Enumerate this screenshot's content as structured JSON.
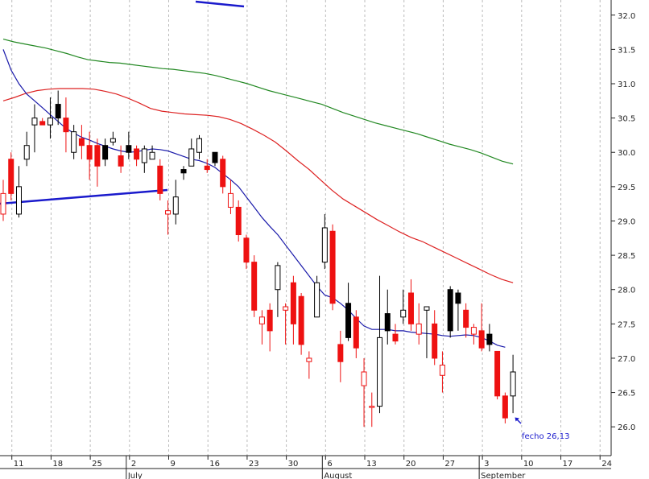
{
  "chart_data": {
    "type": "candlestick",
    "ylim": [
      25.58,
      32.22
    ],
    "y_ticks": [
      "26.0",
      "26.5",
      "27.0",
      "27.5",
      "28.0",
      "28.5",
      "29.0",
      "29.5",
      "30.0",
      "30.5",
      "31.0",
      "31.5",
      "32.0"
    ],
    "x_ticks": [
      "11",
      "18",
      "25",
      "2",
      "9",
      "16",
      "23",
      "30",
      "6",
      "13",
      "20",
      "27",
      "3",
      "10",
      "17",
      "24"
    ],
    "month_labels": [
      "July",
      "August",
      "September"
    ],
    "annotation": "fecho 26,13",
    "colors": {
      "up_candle": "#ffffff",
      "down_candle": "#ee1111",
      "neutral_candle": "#000000",
      "ma_short": "#1a1aaa",
      "ma_mid": "#dd2222",
      "ma_long": "#228822",
      "trendline": "#1a1acc",
      "annotation": "#1a1acc"
    },
    "candles": [
      {
        "o": 29.1,
        "h": 29.6,
        "l": 29.0,
        "c": 29.4,
        "color": "red_outline"
      },
      {
        "o": 29.9,
        "h": 30.0,
        "l": 29.3,
        "c": 29.4,
        "color": "red"
      },
      {
        "o": 29.1,
        "h": 29.8,
        "l": 29.05,
        "c": 29.5,
        "color": "up"
      },
      {
        "o": 29.9,
        "h": 30.3,
        "l": 29.8,
        "c": 30.1,
        "color": "up"
      },
      {
        "o": 30.4,
        "h": 30.7,
        "l": 30.0,
        "c": 30.5,
        "color": "up"
      },
      {
        "o": 30.45,
        "h": 30.5,
        "l": 30.4,
        "c": 30.4,
        "color": "red"
      },
      {
        "o": 30.4,
        "h": 30.8,
        "l": 30.2,
        "c": 30.5,
        "color": "up"
      },
      {
        "o": 30.5,
        "h": 30.9,
        "l": 30.4,
        "c": 30.7,
        "color": "black"
      },
      {
        "o": 30.5,
        "h": 30.8,
        "l": 30.0,
        "c": 30.3,
        "color": "red"
      },
      {
        "o": 30.0,
        "h": 30.4,
        "l": 29.9,
        "c": 30.3,
        "color": "up"
      },
      {
        "o": 30.2,
        "h": 30.4,
        "l": 29.9,
        "c": 30.1,
        "color": "red"
      },
      {
        "o": 30.1,
        "h": 30.3,
        "l": 29.6,
        "c": 29.9,
        "color": "red"
      },
      {
        "o": 30.1,
        "h": 30.2,
        "l": 29.5,
        "c": 29.8,
        "color": "red"
      },
      {
        "o": 29.9,
        "h": 30.2,
        "l": 29.8,
        "c": 30.1,
        "color": "black"
      },
      {
        "o": 30.15,
        "h": 30.3,
        "l": 30.1,
        "c": 30.2,
        "color": "up"
      },
      {
        "o": 29.95,
        "h": 30.1,
        "l": 29.7,
        "c": 29.8,
        "color": "red"
      },
      {
        "o": 30.1,
        "h": 30.3,
        "l": 29.9,
        "c": 30.0,
        "color": "black"
      },
      {
        "o": 30.05,
        "h": 30.1,
        "l": 29.8,
        "c": 29.9,
        "color": "red"
      },
      {
        "o": 29.85,
        "h": 30.1,
        "l": 29.7,
        "c": 30.05,
        "color": "up"
      },
      {
        "o": 30.0,
        "h": 30.1,
        "l": 29.9,
        "c": 29.9,
        "color": "up"
      },
      {
        "o": 29.8,
        "h": 29.9,
        "l": 29.3,
        "c": 29.4,
        "color": "red"
      },
      {
        "o": 29.1,
        "h": 29.3,
        "l": 28.8,
        "c": 29.15,
        "color": "red_outline"
      },
      {
        "o": 29.1,
        "h": 29.6,
        "l": 28.95,
        "c": 29.35,
        "color": "up"
      },
      {
        "o": 29.7,
        "h": 29.8,
        "l": 29.6,
        "c": 29.75,
        "color": "black"
      },
      {
        "o": 29.8,
        "h": 30.2,
        "l": 29.8,
        "c": 30.05,
        "color": "up"
      },
      {
        "o": 30.0,
        "h": 30.25,
        "l": 29.9,
        "c": 30.2,
        "color": "up"
      },
      {
        "o": 29.8,
        "h": 29.9,
        "l": 29.7,
        "c": 29.75,
        "color": "red"
      },
      {
        "o": 29.85,
        "h": 30.0,
        "l": 29.8,
        "c": 30.0,
        "color": "black"
      },
      {
        "o": 29.9,
        "h": 29.95,
        "l": 29.4,
        "c": 29.5,
        "color": "red"
      },
      {
        "o": 29.4,
        "h": 29.6,
        "l": 29.1,
        "c": 29.2,
        "color": "red_outline"
      },
      {
        "o": 29.2,
        "h": 29.3,
        "l": 28.7,
        "c": 28.8,
        "color": "red"
      },
      {
        "o": 28.75,
        "h": 28.8,
        "l": 28.3,
        "c": 28.4,
        "color": "red"
      },
      {
        "o": 28.4,
        "h": 28.5,
        "l": 27.6,
        "c": 27.7,
        "color": "red"
      },
      {
        "o": 27.6,
        "h": 27.7,
        "l": 27.2,
        "c": 27.5,
        "color": "red_outline"
      },
      {
        "o": 27.4,
        "h": 27.8,
        "l": 27.1,
        "c": 27.7,
        "color": "red"
      },
      {
        "o": 28.0,
        "h": 28.4,
        "l": 27.6,
        "c": 28.35,
        "color": "up"
      },
      {
        "o": 27.7,
        "h": 27.8,
        "l": 27.2,
        "c": 27.75,
        "color": "red_outline"
      },
      {
        "o": 28.1,
        "h": 28.2,
        "l": 27.2,
        "c": 27.5,
        "color": "red"
      },
      {
        "o": 27.9,
        "h": 27.95,
        "l": 27.05,
        "c": 27.2,
        "color": "red"
      },
      {
        "o": 27.0,
        "h": 27.1,
        "l": 26.7,
        "c": 26.95,
        "color": "red_outline"
      },
      {
        "o": 27.6,
        "h": 28.2,
        "l": 27.6,
        "c": 28.1,
        "color": "up"
      },
      {
        "o": 28.4,
        "h": 29.1,
        "l": 28.3,
        "c": 28.9,
        "color": "up"
      },
      {
        "o": 28.85,
        "h": 28.95,
        "l": 27.7,
        "c": 27.8,
        "color": "red"
      },
      {
        "o": 27.2,
        "h": 27.4,
        "l": 26.65,
        "c": 26.95,
        "color": "red"
      },
      {
        "o": 27.3,
        "h": 28.1,
        "l": 27.25,
        "c": 27.8,
        "color": "black"
      },
      {
        "o": 27.6,
        "h": 27.7,
        "l": 27.0,
        "c": 27.15,
        "color": "red"
      },
      {
        "o": 26.8,
        "h": 27.0,
        "l": 26.0,
        "c": 26.6,
        "color": "red_outline"
      },
      {
        "o": 26.3,
        "h": 26.5,
        "l": 26.0,
        "c": 26.3,
        "color": "red_outline"
      },
      {
        "o": 26.3,
        "h": 28.2,
        "l": 26.2,
        "c": 27.3,
        "color": "up"
      },
      {
        "o": 27.4,
        "h": 28.0,
        "l": 27.2,
        "c": 27.65,
        "color": "black"
      },
      {
        "o": 27.35,
        "h": 27.5,
        "l": 27.2,
        "c": 27.25,
        "color": "red"
      },
      {
        "o": 27.6,
        "h": 28.0,
        "l": 27.5,
        "c": 27.7,
        "color": "up"
      },
      {
        "o": 27.95,
        "h": 28.15,
        "l": 27.4,
        "c": 27.5,
        "color": "red"
      },
      {
        "o": 27.5,
        "h": 27.8,
        "l": 27.2,
        "c": 27.35,
        "color": "red_outline"
      },
      {
        "o": 27.7,
        "h": 27.75,
        "l": 27.0,
        "c": 27.75,
        "color": "up"
      },
      {
        "o": 27.5,
        "h": 27.7,
        "l": 26.9,
        "c": 27.0,
        "color": "red"
      },
      {
        "o": 26.9,
        "h": 27.1,
        "l": 26.5,
        "c": 26.75,
        "color": "red_outline"
      },
      {
        "o": 27.4,
        "h": 28.05,
        "l": 27.3,
        "c": 28.0,
        "color": "black"
      },
      {
        "o": 27.95,
        "h": 28.0,
        "l": 27.4,
        "c": 27.8,
        "color": "black"
      },
      {
        "o": 27.7,
        "h": 27.8,
        "l": 27.3,
        "c": 27.45,
        "color": "red"
      },
      {
        "o": 27.45,
        "h": 27.5,
        "l": 27.2,
        "c": 27.35,
        "color": "red_outline"
      },
      {
        "o": 27.4,
        "h": 27.8,
        "l": 27.1,
        "c": 27.15,
        "color": "red"
      },
      {
        "o": 27.2,
        "h": 27.5,
        "l": 27.1,
        "c": 27.35,
        "color": "black"
      },
      {
        "o": 27.1,
        "h": 27.1,
        "l": 26.4,
        "c": 26.45,
        "color": "red"
      },
      {
        "o": 26.45,
        "h": 26.5,
        "l": 26.05,
        "c": 26.13,
        "color": "red"
      },
      {
        "o": 26.45,
        "h": 27.05,
        "l": 26.2,
        "c": 26.8,
        "color": "up"
      }
    ],
    "ma_short": [
      31.5,
      31.2,
      31.0,
      30.85,
      30.75,
      30.65,
      30.55,
      30.45,
      30.35,
      30.28,
      30.22,
      30.18,
      30.13,
      30.09,
      30.05,
      30.02,
      30.0,
      30.01,
      30.03,
      30.05,
      30.04,
      30.02,
      29.98,
      29.94,
      29.9,
      29.88,
      29.84,
      29.78,
      29.69,
      29.6,
      29.5,
      29.35,
      29.2,
      29.05,
      28.92,
      28.8,
      28.65,
      28.5,
      28.35,
      28.2,
      28.05,
      27.92,
      27.88,
      27.8,
      27.7,
      27.58,
      27.47,
      27.42,
      27.42,
      27.42,
      27.4,
      27.4,
      27.38,
      27.37,
      27.36,
      27.35,
      27.33,
      27.32,
      27.33,
      27.34,
      27.33,
      27.3,
      27.25,
      27.19,
      27.16
    ],
    "ma_mid": [
      30.75,
      30.8,
      30.86,
      30.9,
      30.92,
      30.93,
      30.93,
      30.93,
      30.92,
      30.89,
      30.85,
      30.79,
      30.72,
      30.64,
      30.6,
      30.58,
      30.56,
      30.55,
      30.54,
      30.52,
      30.48,
      30.42,
      30.34,
      30.25,
      30.15,
      30.02,
      29.88,
      29.75,
      29.6,
      29.45,
      29.32,
      29.22,
      29.12,
      29.02,
      28.93,
      28.84,
      28.76,
      28.7,
      28.62,
      28.54,
      28.46,
      28.38,
      28.3,
      28.22,
      28.15,
      28.1
    ],
    "ma_long": [
      31.65,
      31.61,
      31.58,
      31.55,
      31.52,
      31.48,
      31.44,
      31.39,
      31.35,
      31.33,
      31.31,
      31.3,
      31.28,
      31.26,
      31.24,
      31.22,
      31.21,
      31.19,
      31.17,
      31.15,
      31.12,
      31.08,
      31.04,
      31.0,
      30.95,
      30.9,
      30.86,
      30.82,
      30.78,
      30.74,
      30.7,
      30.64,
      30.58,
      30.53,
      30.48,
      30.43,
      30.39,
      30.35,
      30.31,
      30.27,
      30.22,
      30.17,
      30.12,
      30.08,
      30.04,
      29.99,
      29.93,
      29.87,
      29.83
    ]
  }
}
